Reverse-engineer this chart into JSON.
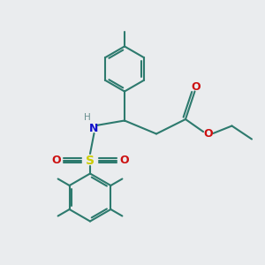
{
  "bg_color": "#eaecee",
  "bond_color": "#2d7a6e",
  "n_color": "#1010cc",
  "s_color": "#cccc00",
  "o_color": "#cc1010",
  "h_color": "#6a9090",
  "line_width": 1.5,
  "figsize": [
    3.0,
    3.0
  ],
  "dpi": 100,
  "xlim": [
    0,
    10
  ],
  "ylim": [
    0,
    10
  ]
}
